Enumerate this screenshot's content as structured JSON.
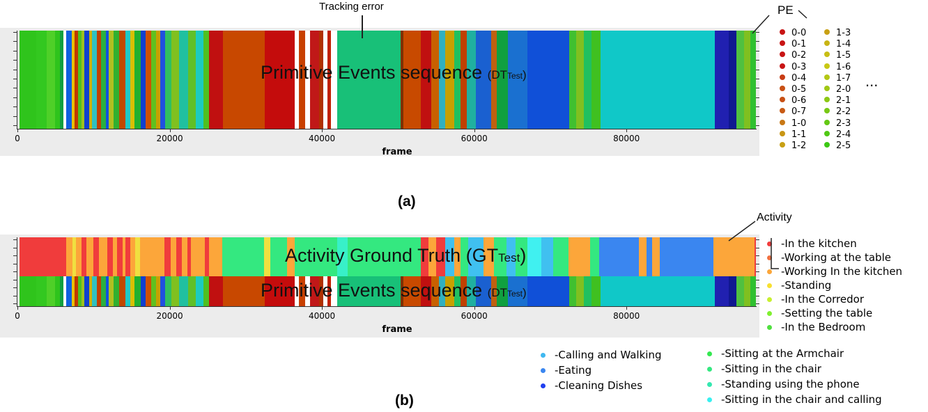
{
  "chart_data": [
    {
      "type": "bar",
      "panel": "a",
      "overlay_text": "Primitive Events sequence",
      "overlay_sub": "(DT",
      "overlay_subscript": "Test",
      "overlay_close": ")",
      "xlabel": "frame",
      "xticks": [
        "0",
        "20000",
        "40000",
        "60000",
        "80000"
      ],
      "xlim": [
        0,
        97000
      ],
      "legend_title": "PE",
      "legend_col1": [
        "0-0",
        "0-1",
        "0-2",
        "0-3",
        "0-4",
        "0-5",
        "0-6",
        "0-7",
        "1-0",
        "1-1",
        "1-2"
      ],
      "legend_col2": [
        "1-3",
        "1-4",
        "1-5",
        "1-6",
        "1-7",
        "2-0",
        "2-1",
        "2-2",
        "2-3",
        "2-4",
        "2-5"
      ],
      "legend_more": "...",
      "annotation": "Tracking error",
      "segments": [
        [
          300,
          2500,
          "#2fc41c"
        ],
        [
          2500,
          3800,
          "#33c820"
        ],
        [
          3800,
          4900,
          "#4fd028"
        ],
        [
          4900,
          5600,
          "#2fc41c"
        ],
        [
          5600,
          6000,
          "#10a040"
        ],
        [
          6000,
          6400,
          "#ffffff"
        ],
        [
          6400,
          7100,
          "#1060e0"
        ],
        [
          7100,
          7500,
          "#e8c000"
        ],
        [
          7500,
          8000,
          "#c03800"
        ],
        [
          8000,
          8400,
          "#50c020"
        ],
        [
          8400,
          8800,
          "#a0c020"
        ],
        [
          8800,
          9400,
          "#1040d0"
        ],
        [
          9400,
          9800,
          "#d0b000"
        ],
        [
          9800,
          10400,
          "#30c0c0"
        ],
        [
          10400,
          11000,
          "#c04000"
        ],
        [
          11000,
          11600,
          "#2ab040"
        ],
        [
          11600,
          12000,
          "#1050e0"
        ],
        [
          12000,
          12600,
          "#b0c020"
        ],
        [
          12600,
          13400,
          "#30b030"
        ],
        [
          13400,
          14200,
          "#c04800"
        ],
        [
          14200,
          14800,
          "#1dc8c8"
        ],
        [
          14800,
          15400,
          "#d8c000"
        ],
        [
          15400,
          16200,
          "#20b030"
        ],
        [
          16200,
          16800,
          "#1040d0"
        ],
        [
          16800,
          17600,
          "#d05000"
        ],
        [
          17600,
          18200,
          "#60c020"
        ],
        [
          18200,
          18800,
          "#c8a000"
        ],
        [
          18800,
          19400,
          "#2050e0"
        ],
        [
          19400,
          20200,
          "#30c060"
        ],
        [
          20200,
          21200,
          "#80c020"
        ],
        [
          21200,
          22400,
          "#20c0a0"
        ],
        [
          22400,
          23400,
          "#60c028"
        ],
        [
          23400,
          24400,
          "#1ccbc0"
        ],
        [
          24400,
          25200,
          "#50c020"
        ],
        [
          25200,
          27000,
          "#c01010"
        ],
        [
          27000,
          32500,
          "#c84800"
        ],
        [
          32500,
          36400,
          "#c40c0c"
        ],
        [
          36400,
          37000,
          "#ffffff"
        ],
        [
          37000,
          37800,
          "#c84000"
        ],
        [
          37800,
          38400,
          "#ffffff"
        ],
        [
          38400,
          39600,
          "#c01818"
        ],
        [
          39600,
          40200,
          "#b03000"
        ],
        [
          40200,
          40700,
          "#ffffff"
        ],
        [
          40700,
          41200,
          "#c02000"
        ],
        [
          41200,
          42000,
          "#ffffff"
        ],
        [
          42000,
          50300,
          "#18c078"
        ],
        [
          50300,
          50700,
          "#803000"
        ],
        [
          50700,
          53000,
          "#c84a00"
        ],
        [
          53000,
          54400,
          "#c01010"
        ],
        [
          54400,
          55400,
          "#c86000"
        ],
        [
          55400,
          56200,
          "#30b0c0"
        ],
        [
          56200,
          57400,
          "#c8a000"
        ],
        [
          57400,
          58200,
          "#20c060"
        ],
        [
          58200,
          59000,
          "#c04000"
        ],
        [
          59000,
          60200,
          "#20b0a0"
        ],
        [
          60200,
          62200,
          "#1a60d0"
        ],
        [
          62200,
          63000,
          "#c06010"
        ],
        [
          63000,
          64400,
          "#10a040"
        ],
        [
          64400,
          67000,
          "#1a70d0"
        ],
        [
          67000,
          72500,
          "#1050d8"
        ],
        [
          72500,
          73400,
          "#40c030"
        ],
        [
          73400,
          74400,
          "#80c020"
        ],
        [
          74400,
          75400,
          "#20c060"
        ],
        [
          75400,
          76600,
          "#40c020"
        ],
        [
          76600,
          91600,
          "#10c8c8"
        ],
        [
          91600,
          93400,
          "#2020b0"
        ],
        [
          93400,
          94400,
          "#101890"
        ],
        [
          94400,
          95400,
          "#50c040"
        ],
        [
          95400,
          96300,
          "#80c020"
        ],
        [
          96300,
          97000,
          "#30c030"
        ]
      ]
    },
    {
      "type": "bar",
      "panel": "b",
      "overlay_top": "Activity Ground Truth",
      "overlay_top_sub": "(GT",
      "overlay_top_subscript": "Test",
      "overlay_top_close": ")",
      "overlay_bottom": "Primitive Events sequence",
      "overlay_bottom_sub": "(DT",
      "overlay_bottom_subscript": "Test",
      "overlay_bottom_close": ")",
      "xlabel": "frame",
      "xticks": [
        "0",
        "20000",
        "40000",
        "60000",
        "80000"
      ],
      "xlim": [
        0,
        97000
      ],
      "legend_title": "Activity",
      "legend_right": [
        "-In the kitchen",
        "-Working at the table",
        "-Working In the kitchen",
        "-Standing",
        "-In the Corredor",
        "-Setting the table",
        "-In the Bedroom"
      ],
      "legend_bottom_col1": [
        "-Calling and Walking",
        "-Eating",
        "-Cleaning Dishes"
      ],
      "legend_bottom_col2": [
        "-Sitting at the Armchair",
        "-Sitting in the chair",
        "-Standing using the phone",
        "-Sitting in the chair and calling"
      ],
      "activity_segments": [
        [
          300,
          6400,
          "#f03c3c"
        ],
        [
          6400,
          7200,
          "#fca63a"
        ],
        [
          7200,
          7700,
          "#f0e040"
        ],
        [
          7700,
          8400,
          "#fca63a"
        ],
        [
          8400,
          9100,
          "#f03c3c"
        ],
        [
          9100,
          10000,
          "#fca63a"
        ],
        [
          10000,
          10700,
          "#f03c3c"
        ],
        [
          10700,
          11800,
          "#fca63a"
        ],
        [
          11800,
          12500,
          "#f03c3c"
        ],
        [
          12500,
          13100,
          "#fca63a"
        ],
        [
          13100,
          13800,
          "#f03c3c"
        ],
        [
          13800,
          14200,
          "#fca63a"
        ],
        [
          14200,
          14800,
          "#f03c3c"
        ],
        [
          14800,
          15500,
          "#fca63a"
        ],
        [
          15500,
          16100,
          "#f0e040"
        ],
        [
          16100,
          19300,
          "#fca63a"
        ],
        [
          19300,
          20100,
          "#f03c3c"
        ],
        [
          20100,
          20900,
          "#fca63a"
        ],
        [
          20900,
          21600,
          "#f03c3c"
        ],
        [
          21600,
          22300,
          "#fca63a"
        ],
        [
          22300,
          22800,
          "#f03c3c"
        ],
        [
          22800,
          24600,
          "#fca63a"
        ],
        [
          24600,
          25200,
          "#f03c3c"
        ],
        [
          25200,
          26900,
          "#fca63a"
        ],
        [
          26900,
          32400,
          "#34e880"
        ],
        [
          32400,
          33200,
          "#f0e040"
        ],
        [
          33200,
          35400,
          "#34e880"
        ],
        [
          35400,
          36400,
          "#fca63a"
        ],
        [
          36400,
          42000,
          "#34e880"
        ],
        [
          42000,
          43400,
          "#38f0c8"
        ],
        [
          43400,
          53000,
          "#34e880"
        ],
        [
          53000,
          54000,
          "#f03c3c"
        ],
        [
          54000,
          55000,
          "#fca63a"
        ],
        [
          55000,
          56200,
          "#f03c3c"
        ],
        [
          56200,
          57400,
          "#40c0f0"
        ],
        [
          57400,
          58200,
          "#fca63a"
        ],
        [
          58200,
          59200,
          "#34e880"
        ],
        [
          59200,
          61200,
          "#40c0f0"
        ],
        [
          61200,
          62600,
          "#fca63a"
        ],
        [
          62600,
          64200,
          "#34e880"
        ],
        [
          64200,
          65400,
          "#40c0f0"
        ],
        [
          65400,
          67000,
          "#34e880"
        ],
        [
          67000,
          68800,
          "#40f0f0"
        ],
        [
          68800,
          70400,
          "#40c0f0"
        ],
        [
          70400,
          72400,
          "#34e880"
        ],
        [
          72400,
          75200,
          "#fca63a"
        ],
        [
          75200,
          76400,
          "#34e880"
        ],
        [
          76400,
          81600,
          "#3a86f0"
        ],
        [
          81600,
          82600,
          "#fca63a"
        ],
        [
          82600,
          83400,
          "#3a86f0"
        ],
        [
          83400,
          84400,
          "#fca63a"
        ],
        [
          84400,
          85600,
          "#3a86f0"
        ],
        [
          85600,
          91400,
          "#3a86f0"
        ],
        [
          91400,
          96800,
          "#fca63a"
        ],
        [
          96800,
          97000,
          "#f03c3c"
        ]
      ],
      "pe_segments": [
        [
          300,
          2500,
          "#2fc41c"
        ],
        [
          2500,
          3800,
          "#33c820"
        ],
        [
          3800,
          4900,
          "#4fd028"
        ],
        [
          4900,
          5600,
          "#2fc41c"
        ],
        [
          5600,
          6000,
          "#10a040"
        ],
        [
          6000,
          6400,
          "#ffffff"
        ],
        [
          6400,
          7100,
          "#1060e0"
        ],
        [
          7100,
          7500,
          "#e8c000"
        ],
        [
          7500,
          8000,
          "#c03800"
        ],
        [
          8000,
          8400,
          "#50c020"
        ],
        [
          8400,
          8800,
          "#a0c020"
        ],
        [
          8800,
          9400,
          "#1040d0"
        ],
        [
          9400,
          9800,
          "#d0b000"
        ],
        [
          9800,
          10400,
          "#30c0c0"
        ],
        [
          10400,
          11000,
          "#c04000"
        ],
        [
          11000,
          11600,
          "#2ab040"
        ],
        [
          11600,
          12000,
          "#1050e0"
        ],
        [
          12000,
          12600,
          "#b0c020"
        ],
        [
          12600,
          13400,
          "#30b030"
        ],
        [
          13400,
          14200,
          "#c04800"
        ],
        [
          14200,
          14800,
          "#1dc8c8"
        ],
        [
          14800,
          15400,
          "#d8c000"
        ],
        [
          15400,
          16200,
          "#20b030"
        ],
        [
          16200,
          16800,
          "#1040d0"
        ],
        [
          16800,
          17600,
          "#d05000"
        ],
        [
          17600,
          18200,
          "#60c020"
        ],
        [
          18200,
          18800,
          "#c8a000"
        ],
        [
          18800,
          19400,
          "#2050e0"
        ],
        [
          19400,
          20200,
          "#30c060"
        ],
        [
          20200,
          21200,
          "#80c020"
        ],
        [
          21200,
          22400,
          "#20c0a0"
        ],
        [
          22400,
          23400,
          "#60c028"
        ],
        [
          23400,
          24400,
          "#1ccbc0"
        ],
        [
          24400,
          25200,
          "#50c020"
        ],
        [
          25200,
          27000,
          "#c01010"
        ],
        [
          27000,
          32500,
          "#c84800"
        ],
        [
          32500,
          36400,
          "#c40c0c"
        ],
        [
          36400,
          37000,
          "#ffffff"
        ],
        [
          37000,
          37800,
          "#c84000"
        ],
        [
          37800,
          38400,
          "#ffffff"
        ],
        [
          38400,
          39600,
          "#c01818"
        ],
        [
          39600,
          40200,
          "#b03000"
        ],
        [
          40200,
          40700,
          "#ffffff"
        ],
        [
          40700,
          41200,
          "#c02000"
        ],
        [
          41200,
          42000,
          "#ffffff"
        ],
        [
          42000,
          50300,
          "#18c078"
        ],
        [
          50300,
          50700,
          "#803000"
        ],
        [
          50700,
          53000,
          "#c84a00"
        ],
        [
          53000,
          54400,
          "#c01010"
        ],
        [
          54400,
          55400,
          "#c86000"
        ],
        [
          55400,
          56200,
          "#30b0c0"
        ],
        [
          56200,
          57400,
          "#c8a000"
        ],
        [
          57400,
          58200,
          "#20c060"
        ],
        [
          58200,
          59000,
          "#c04000"
        ],
        [
          59000,
          60200,
          "#20b0a0"
        ],
        [
          60200,
          62200,
          "#1a60d0"
        ],
        [
          62200,
          63000,
          "#c06010"
        ],
        [
          63000,
          64400,
          "#10a040"
        ],
        [
          64400,
          67000,
          "#1a70d0"
        ],
        [
          67000,
          72500,
          "#1050d8"
        ],
        [
          72500,
          73400,
          "#40c030"
        ],
        [
          73400,
          74400,
          "#80c020"
        ],
        [
          74400,
          75400,
          "#20c060"
        ],
        [
          75400,
          76600,
          "#40c020"
        ],
        [
          76600,
          91600,
          "#10c8c8"
        ],
        [
          91600,
          93400,
          "#2020b0"
        ],
        [
          93400,
          94400,
          "#101890"
        ],
        [
          94400,
          95400,
          "#50c040"
        ],
        [
          95400,
          96300,
          "#80c020"
        ],
        [
          96300,
          97000,
          "#30c030"
        ]
      ]
    }
  ],
  "captions": {
    "a": "(a)",
    "b": "(b)"
  },
  "colors": {
    "pe_legend_col1": [
      "#c81414",
      "#c81414",
      "#c81414",
      "#c81414",
      "#c83c14",
      "#c85014",
      "#c85014",
      "#c85a14",
      "#c87814",
      "#c89614",
      "#c8a014"
    ],
    "pe_legend_col2": [
      "#c8a014",
      "#c8b414",
      "#c8be14",
      "#c8c814",
      "#b4c814",
      "#a0c814",
      "#8cc814",
      "#78c814",
      "#64c814",
      "#50c814",
      "#3cc814"
    ],
    "activity_right": [
      "#f03c3c",
      "#f07040",
      "#fca63a",
      "#f8e030",
      "#c8f030",
      "#80f030",
      "#50e040"
    ],
    "activity_bottom_col1": [
      "#40b8f0",
      "#3a86f0",
      "#2040f0"
    ],
    "activity_bottom_col2": [
      "#34e850",
      "#34e880",
      "#34e8b0",
      "#38f0f0"
    ]
  }
}
